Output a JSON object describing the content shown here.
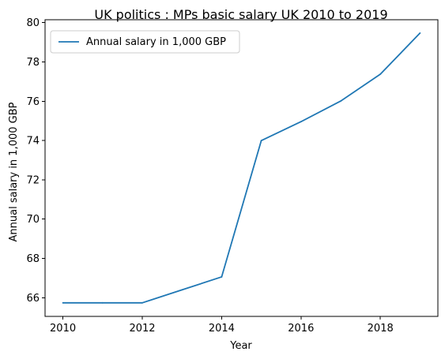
{
  "chart_data": {
    "type": "line",
    "title": "UK politics : MPs basic salary UK 2010 to 2019",
    "xlabel": "Year",
    "ylabel": "Annual salary in 1,000 GBP",
    "x": [
      2010,
      2011,
      2012,
      2013,
      2014,
      2015,
      2016,
      2017,
      2018,
      2019
    ],
    "series": [
      {
        "name": "Annual salary in 1,000 GBP",
        "color": "#1f77b4",
        "values": [
          65.74,
          65.74,
          65.74,
          66.4,
          67.06,
          74.0,
          74.96,
          76.01,
          77.38,
          79.47
        ]
      }
    ],
    "xlim": [
      2009.55,
      2019.45
    ],
    "ylim": [
      65.05,
      80.15
    ],
    "xticks": [
      "2010",
      "2012",
      "2014",
      "2016",
      "2018"
    ],
    "yticks": [
      "66",
      "68",
      "70",
      "72",
      "74",
      "76",
      "78",
      "80"
    ],
    "grid": false,
    "legend_position": "top-left"
  }
}
